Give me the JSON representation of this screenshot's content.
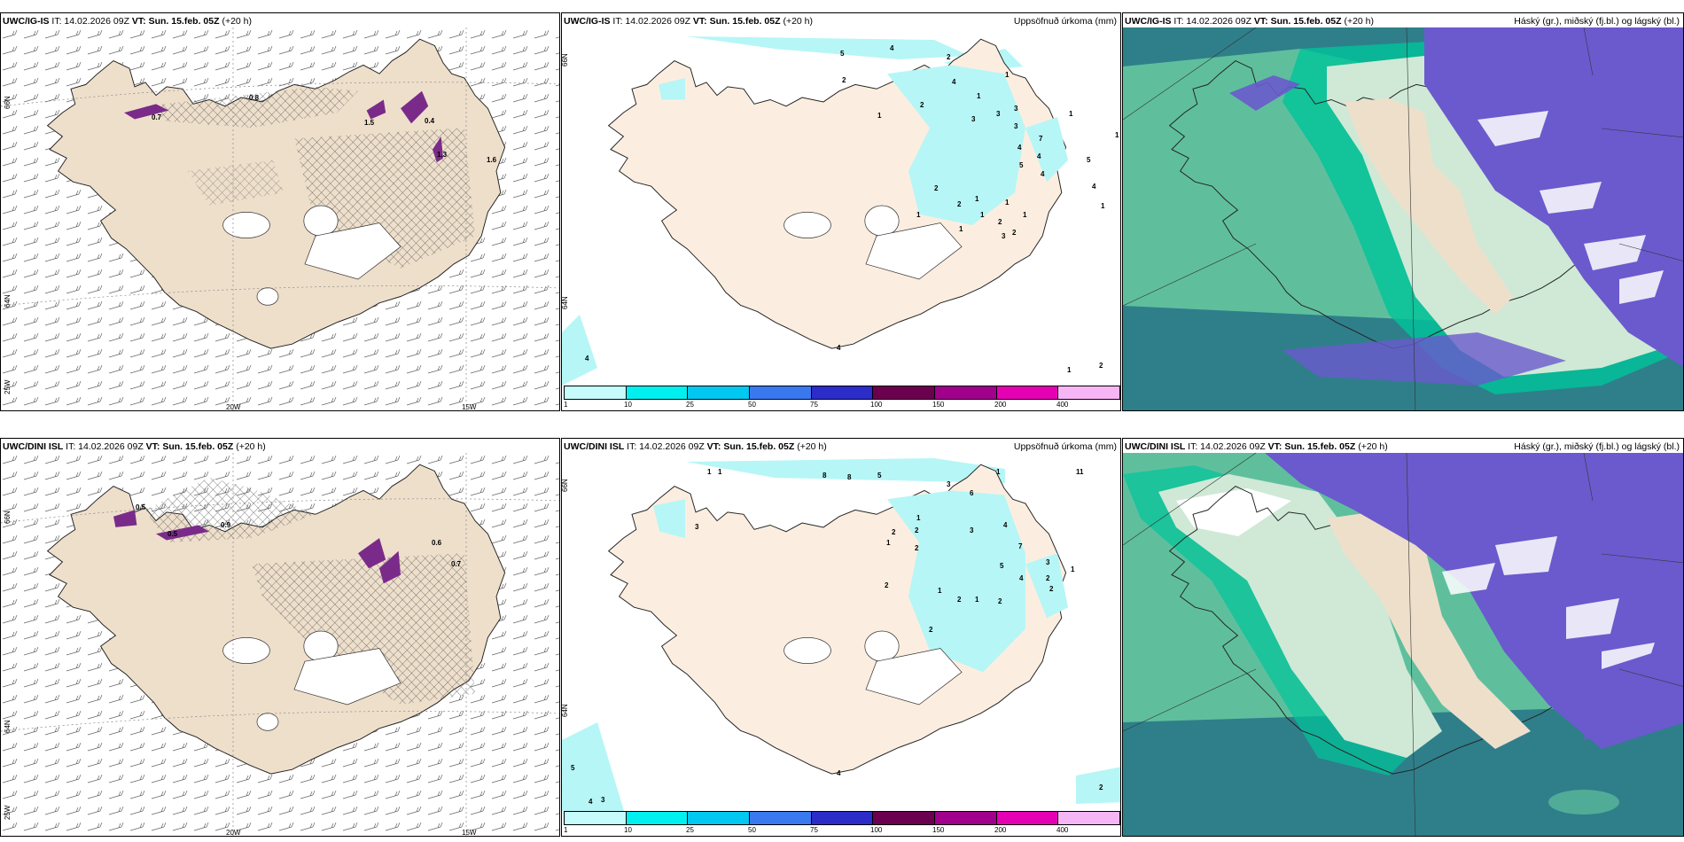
{
  "colors": {
    "land": "#eedfcb",
    "land_light": "#fbeee0",
    "sea_green": "#5fbf9d",
    "sea_dark": "#2f7f8a",
    "cloud_purple": "#6a5acd",
    "cloud_blue": "#3b5bdb",
    "cloud_white": "#ffffff",
    "precip_cyan": "#b6f6f6",
    "hatch": "#555555",
    "ice_purple": "#7a2b8a"
  },
  "top_row": {
    "wind_panel": {
      "title_model": "UWC/IG-IS",
      "title_it": "IT: 14.02.2026 09Z",
      "title_vt": "VT: Sun. 15.feb. 05Z",
      "title_lead": "(+20 h)",
      "lat_labels": [
        "66N",
        "64N",
        "25W"
      ],
      "lon_labels": [
        "20W",
        "15W"
      ],
      "icing_labels": [
        "0.7",
        "0.8",
        "1.5",
        "0.4",
        "1.3",
        "1.6"
      ]
    },
    "precip_panel": {
      "title_model": "UWC/IG-IS",
      "title_it": "IT: 14.02.2026 09Z",
      "title_vt": "VT: Sun. 15.feb. 05Z",
      "title_lead": "(+20 h)",
      "right_title": "Uppsöfnuð úrkoma (mm)",
      "lat_labels": [
        "66N",
        "64N"
      ],
      "precip_values": [
        "5",
        "4",
        "2",
        "2",
        "4",
        "1",
        "1",
        "2",
        "1",
        "3",
        "3",
        "3",
        "3",
        "7",
        "4",
        "4",
        "4",
        "5",
        "5",
        "4",
        "2",
        "1",
        "1",
        "2",
        "1",
        "2",
        "1",
        "1",
        "1",
        "3",
        "2",
        "1",
        "1",
        "4",
        "4",
        "1",
        "2",
        "1"
      ],
      "colorbar_ticks": [
        "1",
        "10",
        "25",
        "50",
        "75",
        "100",
        "150",
        "200",
        "400"
      ]
    },
    "cloud_panel": {
      "title_model": "UWC/IG-IS",
      "title_it": "IT: 14.02.2026 09Z",
      "title_vt": "VT: Sun. 15.feb. 05Z",
      "title_lead": "(+20 h)",
      "right_title": "Háský (gr.), miðský (fj.bl.) og lágský (bl.)"
    }
  },
  "bottom_row": {
    "wind_panel": {
      "title_model": "UWC/DINI ISL",
      "title_it": "IT: 14.02.2026 09Z",
      "title_vt": "VT: Sun. 15.feb. 05Z",
      "title_lead": "(+20 h)",
      "lat_labels": [
        "66N",
        "64N",
        "25W"
      ],
      "lon_labels": [
        "20W",
        "15W"
      ],
      "icing_labels": [
        "0.5",
        "0.5",
        "0.9",
        "0.6",
        "0.7"
      ]
    },
    "precip_panel": {
      "title_model": "UWC/DINI ISL",
      "title_it": "IT: 14.02.2026 09Z",
      "title_vt": "VT: Sun. 15.feb. 05Z",
      "title_lead": "(+20 h)",
      "right_title": "Uppsöfnuð úrkoma (mm)",
      "lat_labels": [
        "66N",
        "64N"
      ],
      "precip_values": [
        "1",
        "1",
        "8",
        "8",
        "5",
        "3",
        "1",
        "1",
        "3",
        "6",
        "4",
        "7",
        "2",
        "1",
        "2",
        "1",
        "2",
        "2",
        "3",
        "5",
        "4",
        "3",
        "2",
        "2",
        "1",
        "2",
        "1",
        "2",
        "1",
        "2",
        "2",
        "4",
        "5",
        "4",
        "3",
        "2",
        "1"
      ],
      "colorbar_ticks": [
        "1",
        "10",
        "25",
        "50",
        "75",
        "100",
        "150",
        "200",
        "400"
      ]
    },
    "cloud_panel": {
      "title_model": "UWC/DINI ISL",
      "title_it": "IT: 14.02.2026 09Z",
      "title_vt": "VT: Sun. 15.feb. 05Z",
      "title_lead": "(+20 h)",
      "right_title": "Háský (gr.), miðský (fj.bl.) og lágský (bl.)"
    }
  },
  "colorbar_colors": [
    "#c6fbfb",
    "#00f0f0",
    "#00c8f0",
    "#3a78f0",
    "#2c2cc8",
    "#6b004f",
    "#a0008c",
    "#e600b4",
    "#f6b6f6"
  ]
}
